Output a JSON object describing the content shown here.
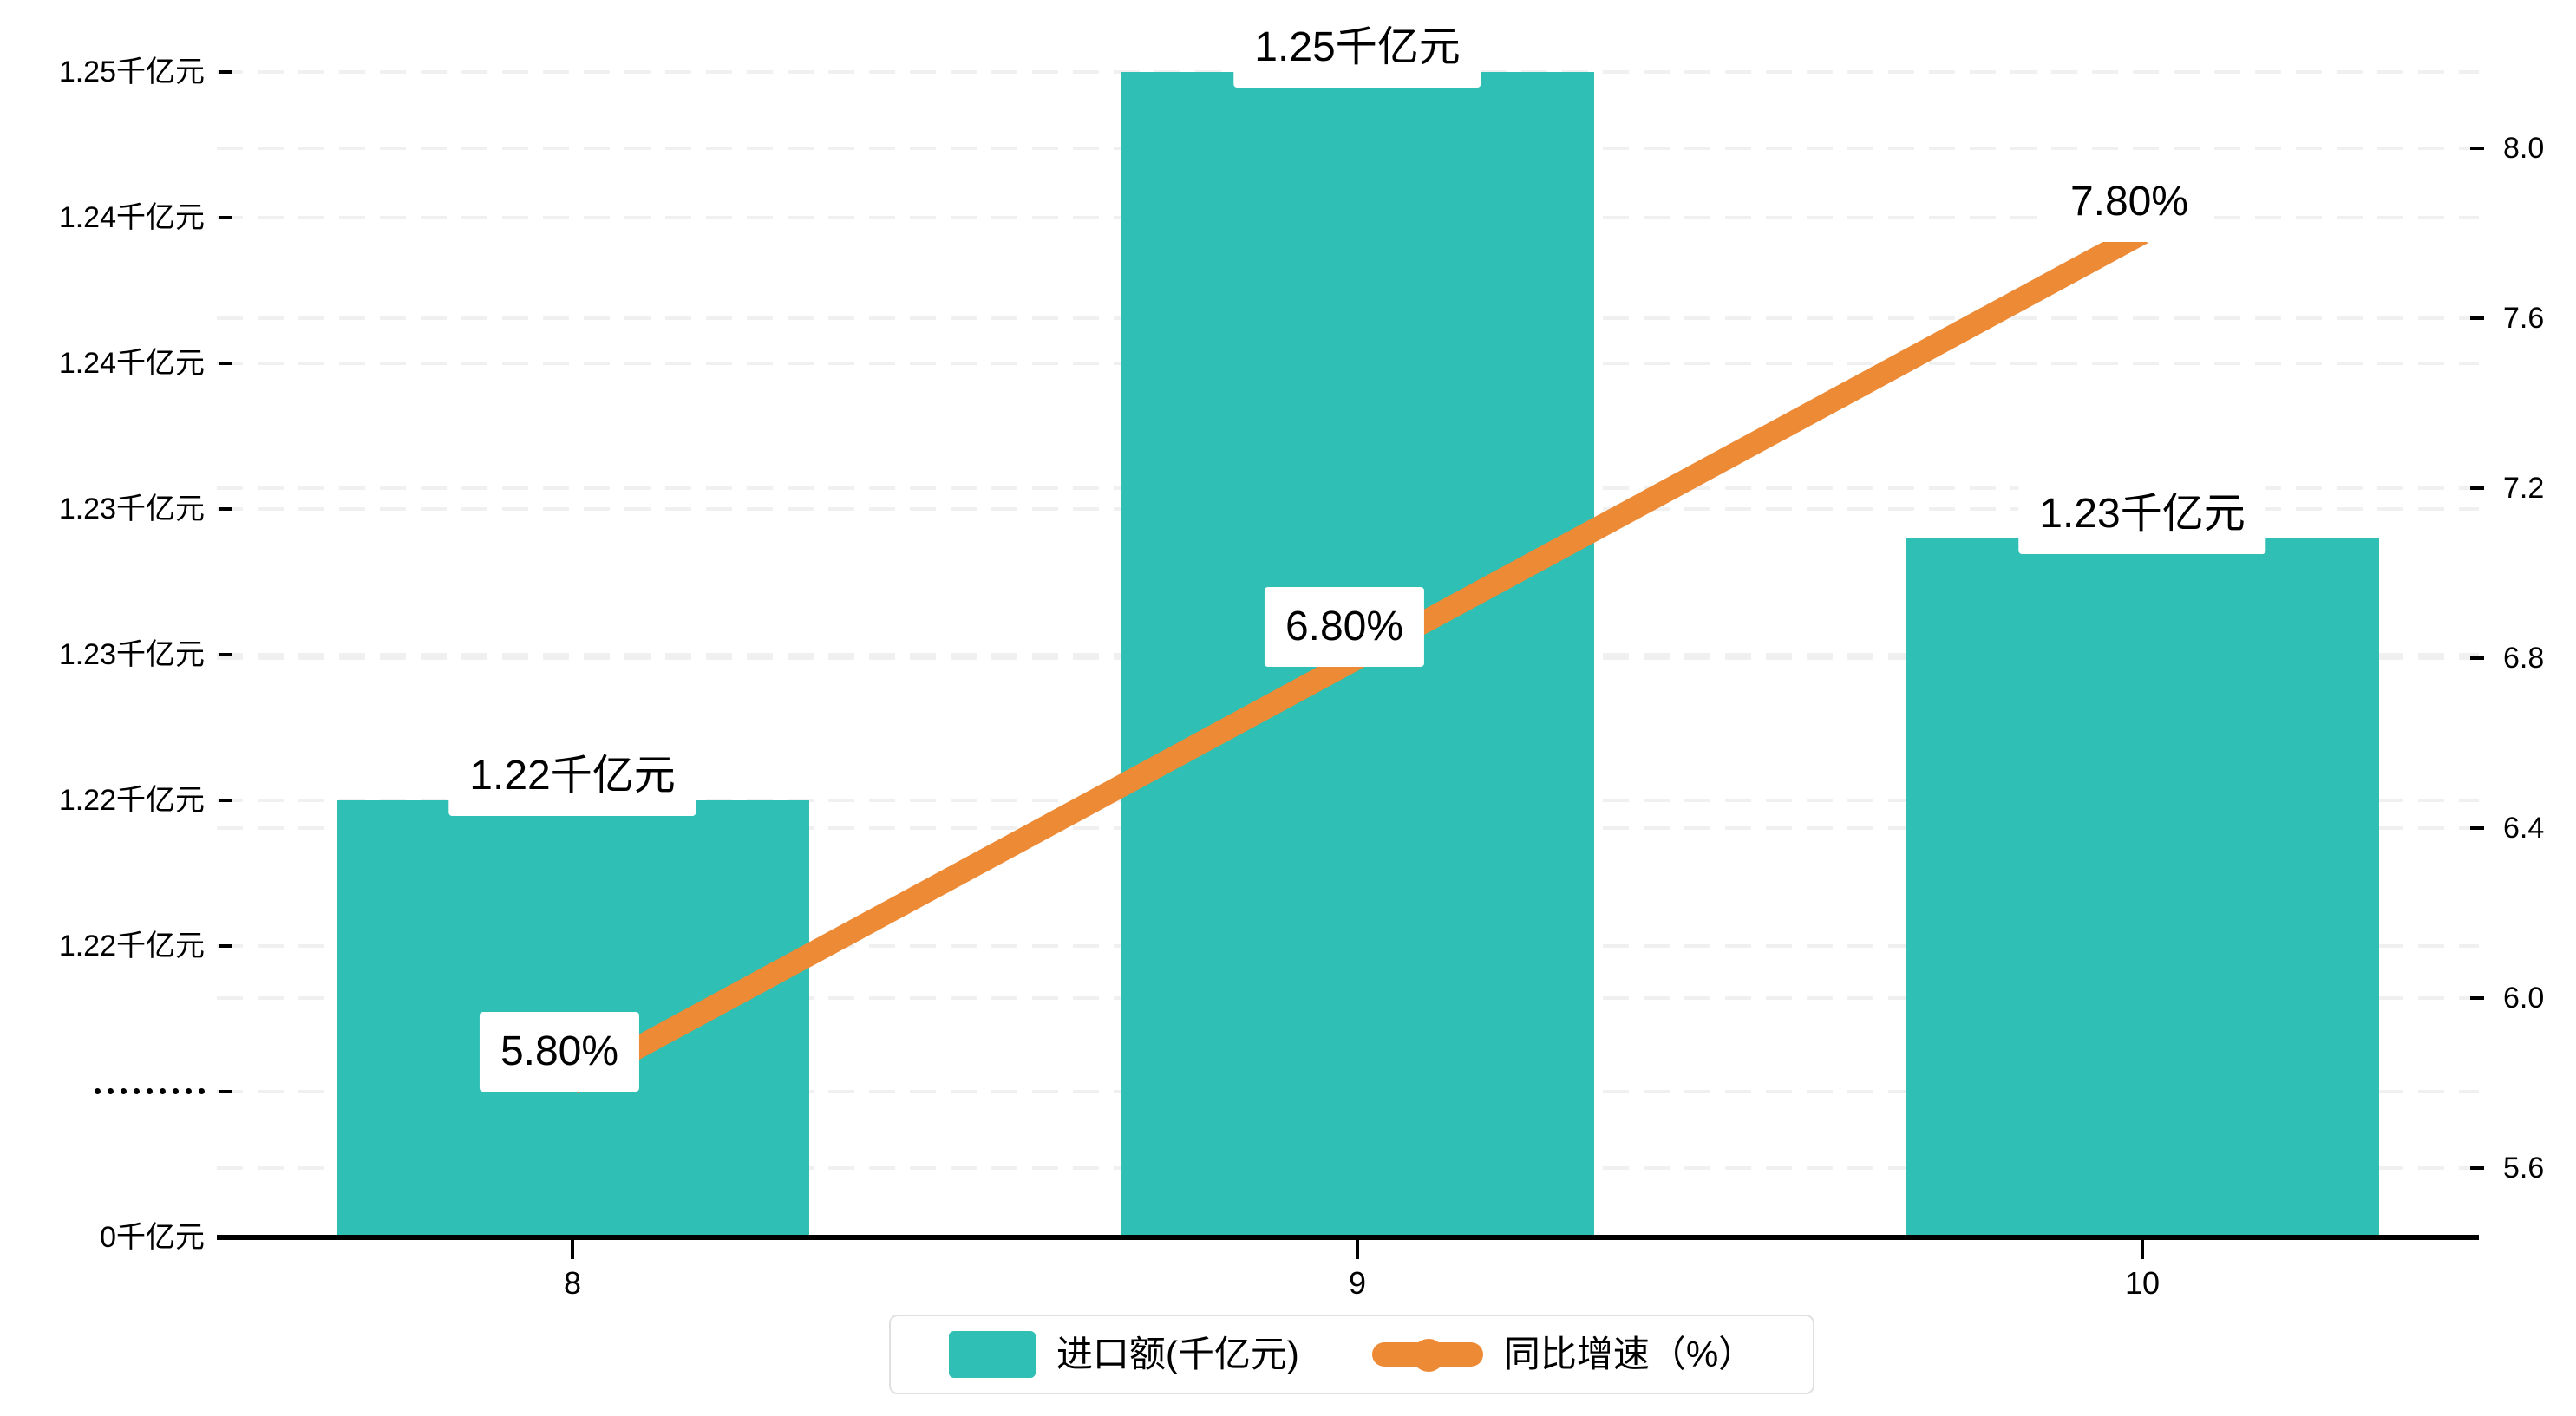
{
  "chart_data": {
    "type": "bar",
    "title": "",
    "categories": [
      "8",
      "9",
      "10"
    ],
    "series": [
      {
        "name": "进口额(千亿元)",
        "type": "bar",
        "axis": "left",
        "values": [
          1.225,
          1.25,
          1.234
        ],
        "labels": [
          "1.22千亿元",
          "1.25千亿元",
          "1.23千亿元"
        ],
        "color": "#2fbfb4"
      },
      {
        "name": "同比增速（%）",
        "type": "line",
        "axis": "right",
        "values": [
          5.8,
          6.8,
          7.8
        ],
        "labels": [
          "5.80%",
          "6.80%",
          "7.80%"
        ],
        "color": "#ed8a35"
      }
    ],
    "left_axis": {
      "unit": "千亿元",
      "tick_labels": [
        "1.25千亿元",
        "1.24千亿元",
        "1.24千亿元",
        "1.23千亿元",
        "1.23千亿元",
        "1.22千亿元",
        "1.22千亿元",
        "·········",
        "0千亿元"
      ],
      "has_axis_break": true,
      "break_marker_dots": 9
    },
    "right_axis": {
      "tick_labels": [
        "8.0",
        "7.6",
        "7.2",
        "6.8",
        "6.4",
        "6.0",
        "5.6"
      ],
      "min": 5.6,
      "max": 8.0,
      "interval": 0.4
    },
    "x_axis": {
      "tick_labels": [
        "8",
        "9",
        "10"
      ]
    },
    "legend": {
      "items": [
        {
          "label": "进口额(千亿元)",
          "icon": "bar-swatch",
          "color": "#2fbfb4"
        },
        {
          "label": "同比增速（%）",
          "icon": "line-dot",
          "color": "#ed8a35"
        }
      ]
    },
    "grid": {
      "dashed": true,
      "color": "#f0f0f0",
      "legend_position": "bottom-center"
    }
  },
  "colors": {
    "bar": "#2fbfb4",
    "line": "#ed8a35",
    "grid": "#f0f0f0",
    "axis": "#000000",
    "text": "#000000",
    "label_bg": "#ffffff",
    "legend_border": "#e0e0e0",
    "background": "#ffffff"
  }
}
